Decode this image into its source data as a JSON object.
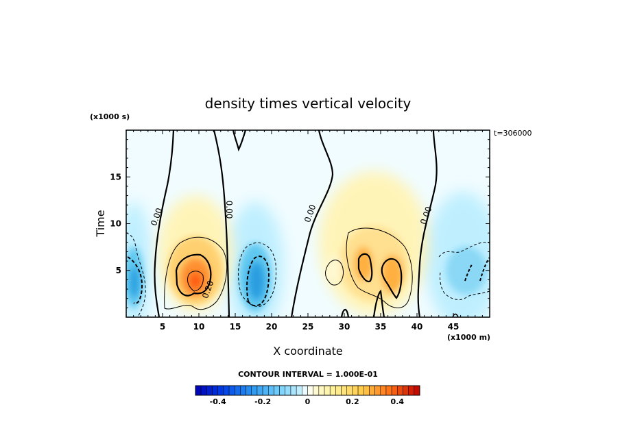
{
  "chart_data": {
    "type": "heatmap",
    "title": "density times vertical velocity",
    "xlabel": "X coordinate",
    "ylabel": "Time",
    "x_multiplier": "(x1000 m)",
    "y_multiplier": "(x1000 s)",
    "time_stamp": "t=306000",
    "xlim": [
      0,
      50
    ],
    "ylim": [
      0,
      20
    ],
    "x_ticks": [
      "5",
      "10",
      "15",
      "20",
      "25",
      "30",
      "35",
      "40",
      "45"
    ],
    "y_ticks": [
      "5",
      "10",
      "15"
    ],
    "contour_interval": "CONTOUR INTERVAL = 1.000E-01",
    "colorbar_ticks": [
      "-0.4",
      "-0.2",
      "0",
      "0.2",
      "0.4"
    ],
    "colorbar_range": [
      -0.5,
      0.5
    ],
    "contour_labels": [
      "0.00",
      "0.00",
      "0.00",
      "0.00",
      "0.20"
    ],
    "features": [
      {
        "x": 1.5,
        "t": 4,
        "value": -0.35
      },
      {
        "x": 9.5,
        "t": 4,
        "value": 0.38
      },
      {
        "x": 17.5,
        "t": 5,
        "value": -0.3
      },
      {
        "x": 33.5,
        "t": 5,
        "value": 0.27
      },
      {
        "x": 36.5,
        "t": 4.5,
        "value": 0.28
      },
      {
        "x": 47.5,
        "t": 4,
        "value": -0.25
      }
    ]
  },
  "colors": {
    "negative_deep": "#0000b4",
    "negative_light": "#aaf0ff",
    "neutral": "#ffffff",
    "positive_light": "#fff5b4",
    "positive_deep": "#c80000"
  }
}
